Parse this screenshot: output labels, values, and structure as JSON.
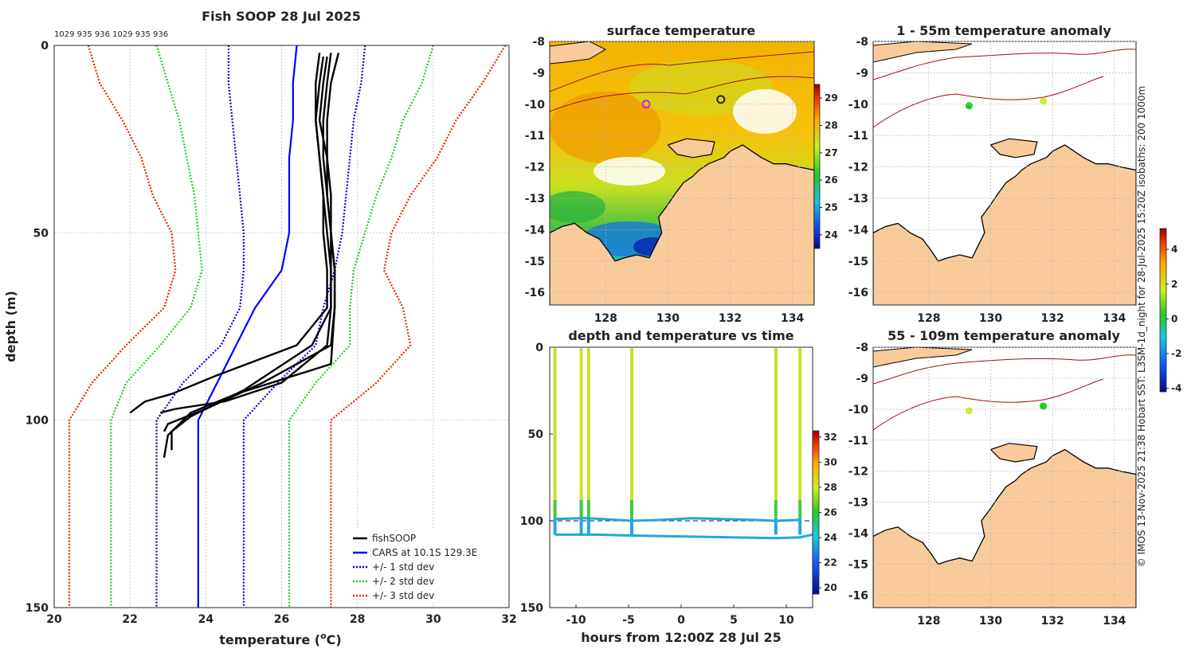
{
  "figure": {
    "side_credit": "© IMOS 13-Nov-2025 21:38 Hobart SST: L3SM-1d_night for 28-Jul-2025 15:20Z isobaths: 200  1000m"
  },
  "colors": {
    "fishsoop": "#000000",
    "cars": "#0000ff",
    "std1": "#0000dd",
    "std2": "#22cc22",
    "std3": "#ee2200",
    "land": "#facb9a",
    "isobath": "#a01010",
    "coast": "#000000"
  },
  "chart_data": [
    {
      "id": "profile",
      "type": "line",
      "title": "Fish SOOP 28 Jul 2025",
      "top_labels": "1029 935 936 1029 935 936",
      "xlabel": "temperature (°C)",
      "xlabel_text": "temperature (",
      "xlabel_sup": "o",
      "xlabel_unit": "C)",
      "ylabel": "depth (m)",
      "xlim": [
        20,
        32
      ],
      "ylim": [
        150,
        0
      ],
      "xticks": [
        20,
        22,
        24,
        26,
        28,
        30,
        32
      ],
      "yticks": [
        0,
        50,
        100,
        150
      ],
      "legend": {
        "position": "bottom-right",
        "entries": [
          "fishSOOP",
          "CARS at 10.1S 129.3E",
          "+/- 1 std dev",
          "+/- 2 std dev",
          "+/- 3 std dev"
        ]
      },
      "cars": {
        "temp": [
          26.4,
          26.3,
          26.3,
          26.2,
          26.2,
          26.2,
          26.0,
          25.3,
          24.8,
          24.3,
          23.8,
          23.8,
          23.8
        ],
        "depth": [
          0,
          10,
          20,
          30,
          40,
          50,
          60,
          70,
          80,
          90,
          100,
          120,
          150
        ]
      },
      "std1": {
        "minus": [
          24.6,
          24.6,
          24.7,
          24.8,
          24.9,
          25.0,
          25.0,
          24.9,
          24.4,
          23.4,
          22.7,
          22.7,
          22.7
        ],
        "plus": [
          28.2,
          28.1,
          27.9,
          27.8,
          27.7,
          27.6,
          27.4,
          27.1,
          26.9,
          25.9,
          25.0,
          25.0,
          25.0
        ],
        "depth": [
          0,
          10,
          20,
          30,
          40,
          50,
          60,
          70,
          80,
          90,
          100,
          120,
          150
        ]
      },
      "std2": {
        "minus": [
          22.7,
          23.0,
          23.3,
          23.5,
          23.7,
          23.8,
          23.9,
          23.6,
          22.8,
          21.9,
          21.5,
          21.5,
          21.5
        ],
        "plus": [
          30.0,
          29.7,
          29.2,
          28.9,
          28.5,
          28.2,
          27.9,
          27.8,
          27.8,
          26.9,
          26.2,
          26.2,
          26.2
        ],
        "depth": [
          0,
          10,
          20,
          30,
          40,
          50,
          60,
          70,
          80,
          90,
          100,
          120,
          150
        ]
      },
      "std3": {
        "minus": [
          20.9,
          21.2,
          21.8,
          22.3,
          22.6,
          23.1,
          23.2,
          22.9,
          21.9,
          21.0,
          20.4,
          20.4,
          20.4
        ],
        "plus": [
          31.9,
          31.3,
          30.6,
          30.1,
          29.4,
          28.9,
          28.7,
          29.2,
          29.4,
          28.5,
          27.3,
          27.3,
          27.3
        ],
        "depth": [
          0,
          10,
          20,
          30,
          40,
          50,
          60,
          70,
          80,
          90,
          100,
          120,
          150
        ]
      },
      "fishsoop_profiles": [
        {
          "temp": [
            27.0,
            26.9,
            26.9,
            27.0,
            27.1,
            27.2,
            27.3,
            27.3,
            27.2,
            26.0,
            24.5,
            23.2,
            22.8
          ],
          "depth": [
            2,
            10,
            20,
            30,
            40,
            50,
            60,
            70,
            80,
            90,
            95,
            97,
            98
          ]
        },
        {
          "temp": [
            27.2,
            27.1,
            27.0,
            27.2,
            27.3,
            27.3,
            27.4,
            27.4,
            27.3,
            25.5,
            24.0,
            23.0,
            22.9
          ],
          "depth": [
            3,
            10,
            20,
            30,
            40,
            50,
            60,
            70,
            80,
            90,
            97,
            101,
            103
          ]
        },
        {
          "temp": [
            27.5,
            27.3,
            27.2,
            27.2,
            27.2,
            27.3,
            27.4,
            27.4,
            27.3,
            24.8,
            23.6,
            23.0,
            22.9
          ],
          "depth": [
            2,
            10,
            20,
            30,
            40,
            50,
            60,
            70,
            85,
            93,
            98,
            104,
            110
          ]
        },
        {
          "temp": [
            27.1,
            27.0,
            26.9,
            27.0,
            27.1,
            27.1,
            27.2,
            27.2,
            26.4,
            24.3,
            23.1,
            22.4,
            22.0
          ],
          "depth": [
            3,
            10,
            20,
            30,
            40,
            50,
            60,
            70,
            80,
            88,
            93,
            95,
            98
          ]
        },
        {
          "temp": [
            27.3,
            27.2,
            27.1,
            27.1,
            27.2,
            27.3,
            27.3,
            27.3,
            26.8,
            25.0,
            23.6,
            23.1,
            23.1
          ],
          "depth": [
            2,
            10,
            20,
            30,
            40,
            50,
            60,
            70,
            80,
            92,
            99,
            103,
            108
          ]
        }
      ]
    },
    {
      "id": "sst_map",
      "type": "heatmap",
      "title": "surface temperature",
      "xlim": [
        126.2,
        134.7
      ],
      "ylim": [
        -16.4,
        -8
      ],
      "xticks": [
        128,
        130,
        132,
        134
      ],
      "yticks": [
        -8,
        -9,
        -10,
        -11,
        -12,
        -13,
        -14,
        -15,
        -16
      ],
      "colorbar": {
        "min": 23.5,
        "max": 29.5,
        "ticks": [
          24,
          25,
          26,
          27,
          28,
          29
        ]
      },
      "markers": [
        {
          "lon": 129.3,
          "lat": -10.0,
          "color": "#cc22cc"
        },
        {
          "lon": 131.7,
          "lat": -9.85,
          "color": "#222222"
        }
      ]
    },
    {
      "id": "anom_1_55",
      "type": "heatmap",
      "title": "1 - 55m temperature anomaly",
      "xlim": [
        126.2,
        134.7
      ],
      "ylim": [
        -16.4,
        -8
      ],
      "xticks": [
        128,
        130,
        132,
        134
      ],
      "yticks": [
        -8,
        -9,
        -10,
        -11,
        -12,
        -13,
        -14,
        -15,
        -16
      ],
      "markers": [
        {
          "lon": 129.3,
          "lat": -10.05,
          "color": "#22cc22"
        },
        {
          "lon": 131.7,
          "lat": -9.9,
          "color": "#ccee33"
        }
      ]
    },
    {
      "id": "anom_55_109",
      "type": "heatmap",
      "title": "55 - 109m temperature anomaly",
      "xlim": [
        126.2,
        134.7
      ],
      "ylim": [
        -16.4,
        -8
      ],
      "xticks": [
        128,
        130,
        132,
        134
      ],
      "yticks": [
        -8,
        -9,
        -10,
        -11,
        -12,
        -13,
        -14,
        -15,
        -16
      ],
      "colorbar": {
        "min": -4.2,
        "max": 5.2,
        "ticks": [
          -4,
          -2,
          0,
          2,
          4
        ]
      },
      "markers": [
        {
          "lon": 129.3,
          "lat": -10.05,
          "color": "#ccee33"
        },
        {
          "lon": 131.7,
          "lat": -9.9,
          "color": "#22cc22"
        }
      ]
    },
    {
      "id": "depth_time",
      "type": "scatter",
      "title": "depth and temperature vs time",
      "xlabel": "hours from 12:00Z 28 Jul 25",
      "xlim": [
        -12.5,
        12.5
      ],
      "ylim": [
        150,
        0
      ],
      "xticks": [
        -10,
        -5,
        0,
        5,
        10
      ],
      "yticks": [
        0,
        50,
        100,
        150
      ],
      "colorbar": {
        "min": 19.5,
        "max": 32.5,
        "ticks": [
          20,
          22,
          24,
          26,
          28,
          30,
          32
        ]
      },
      "casts_hours": [
        -12.0,
        -9.5,
        -8.8,
        -4.7,
        9.0,
        11.3
      ],
      "bottom_track": {
        "hours": [
          -12.0,
          -9.5,
          -8.8,
          -4.7,
          -2.0,
          1.0,
          4.0,
          7.0,
          9.0,
          11.3
        ],
        "depth": [
          99,
          98.5,
          98.5,
          100,
          99.5,
          98.5,
          99,
          99.5,
          100,
          99.5
        ]
      },
      "deep_track": {
        "hours": [
          -12.0,
          -8.0,
          -4.7,
          9.0,
          11.3,
          12.5
        ],
        "depth": [
          108,
          108,
          108.5,
          110,
          109.5,
          108
        ]
      },
      "dashed_depth": 100
    }
  ]
}
